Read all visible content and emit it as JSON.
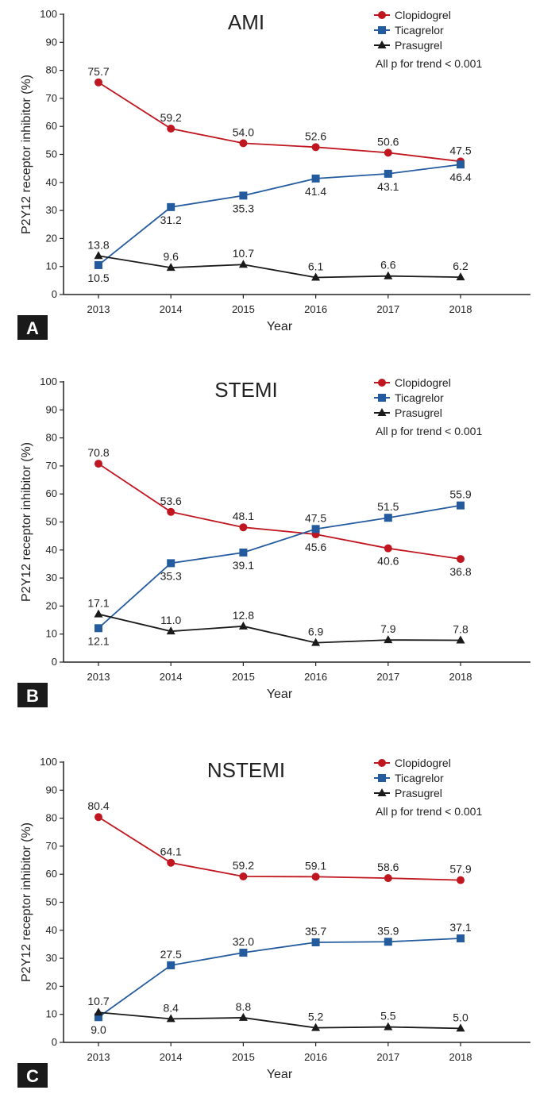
{
  "colors": {
    "Clopidogrel": "#c0161f",
    "Ticagrelor": "#245b9e",
    "Prasugrel": "#1a1a1a"
  },
  "chart_data": [
    {
      "type": "line",
      "panel_label": "A",
      "title": "AMI",
      "xlabel": "Year",
      "ylabel": "P2Y12 receptor inhibitor (%)",
      "ylim": [
        0,
        100
      ],
      "yticks": [
        0,
        10,
        20,
        30,
        40,
        50,
        60,
        70,
        80,
        90,
        100
      ],
      "x": [
        "2013",
        "2014",
        "2015",
        "2016",
        "2017",
        "2018"
      ],
      "annotation": "All p for trend < 0.001",
      "legend_position": "top-right",
      "series": [
        {
          "name": "Clopidogrel",
          "marker": "circle",
          "values": [
            75.7,
            59.2,
            54.0,
            52.6,
            50.6,
            47.5
          ],
          "labels": [
            "75.7",
            "59.2",
            "54.0",
            "52.6",
            "50.6",
            "47.5"
          ],
          "label_side": [
            "above",
            "above",
            "above",
            "above",
            "above",
            "above"
          ]
        },
        {
          "name": "Ticagrelor",
          "marker": "square",
          "values": [
            10.5,
            31.2,
            35.3,
            41.4,
            43.1,
            46.4
          ],
          "labels": [
            "10.5",
            "31.2",
            "35.3",
            "41.4",
            "43.1",
            "46.4"
          ],
          "label_side": [
            "below",
            "below",
            "below",
            "below",
            "below",
            "below"
          ]
        },
        {
          "name": "Prasugrel",
          "marker": "triangle",
          "values": [
            13.8,
            9.6,
            10.7,
            6.1,
            6.6,
            6.2
          ],
          "labels": [
            "13.8",
            "9.6",
            "10.7",
            "6.1",
            "6.6",
            "6.2"
          ],
          "label_side": [
            "above",
            "above",
            "above",
            "above",
            "above",
            "above"
          ]
        }
      ]
    },
    {
      "type": "line",
      "panel_label": "B",
      "title": "STEMI",
      "xlabel": "Year",
      "ylabel": "P2Y12 receptor inhibitor (%)",
      "ylim": [
        0,
        100
      ],
      "yticks": [
        0,
        10,
        20,
        30,
        40,
        50,
        60,
        70,
        80,
        90,
        100
      ],
      "x": [
        "2013",
        "2014",
        "2015",
        "2016",
        "2017",
        "2018"
      ],
      "annotation": "All p for trend < 0.001",
      "legend_position": "top-right",
      "series": [
        {
          "name": "Clopidogrel",
          "marker": "circle",
          "values": [
            70.8,
            53.6,
            48.1,
            45.6,
            40.6,
            36.8
          ],
          "labels": [
            "70.8",
            "53.6",
            "48.1",
            "45.6",
            "40.6",
            "36.8"
          ],
          "label_side": [
            "above",
            "above",
            "above",
            "below",
            "below",
            "below"
          ]
        },
        {
          "name": "Ticagrelor",
          "marker": "square",
          "values": [
            12.1,
            35.3,
            39.1,
            47.5,
            51.5,
            55.9
          ],
          "labels": [
            "12.1",
            "35.3",
            "39.1",
            "47.5",
            "51.5",
            "55.9"
          ],
          "label_side": [
            "below",
            "below",
            "below",
            "above",
            "above",
            "above"
          ]
        },
        {
          "name": "Prasugrel",
          "marker": "triangle",
          "values": [
            17.1,
            11.0,
            12.8,
            6.9,
            7.9,
            7.8
          ],
          "labels": [
            "17.1",
            "11.0",
            "12.8",
            "6.9",
            "7.9",
            "7.8"
          ],
          "label_side": [
            "above",
            "above",
            "above",
            "above",
            "above",
            "above"
          ]
        }
      ]
    },
    {
      "type": "line",
      "panel_label": "C",
      "title": "NSTEMI",
      "xlabel": "Year",
      "ylabel": "P2Y12 receptor inhibitor (%)",
      "ylim": [
        0,
        100
      ],
      "yticks": [
        0,
        10,
        20,
        30,
        40,
        50,
        60,
        70,
        80,
        90,
        100
      ],
      "x": [
        "2013",
        "2014",
        "2015",
        "2016",
        "2017",
        "2018"
      ],
      "annotation": "All p for trend < 0.001",
      "legend_position": "top-right",
      "series": [
        {
          "name": "Clopidogrel",
          "marker": "circle",
          "values": [
            80.4,
            64.1,
            59.2,
            59.1,
            58.6,
            57.9
          ],
          "labels": [
            "80.4",
            "64.1",
            "59.2",
            "59.1",
            "58.6",
            "57.9"
          ],
          "label_side": [
            "above",
            "above",
            "above",
            "above",
            "above",
            "above"
          ]
        },
        {
          "name": "Ticagrelor",
          "marker": "square",
          "values": [
            9.0,
            27.5,
            32.0,
            35.7,
            35.9,
            37.1
          ],
          "labels": [
            "9.0",
            "27.5",
            "32.0",
            "35.7",
            "35.9",
            "37.1"
          ],
          "label_side": [
            "below",
            "above",
            "above",
            "above",
            "above",
            "above"
          ]
        },
        {
          "name": "Prasugrel",
          "marker": "triangle",
          "values": [
            10.7,
            8.4,
            8.8,
            5.2,
            5.5,
            5.0
          ],
          "labels": [
            "10.7",
            "8.4",
            "8.8",
            "5.2",
            "5.5",
            "5.0"
          ],
          "label_side": [
            "above",
            "above",
            "above",
            "above",
            "above",
            "above"
          ]
        }
      ]
    }
  ]
}
